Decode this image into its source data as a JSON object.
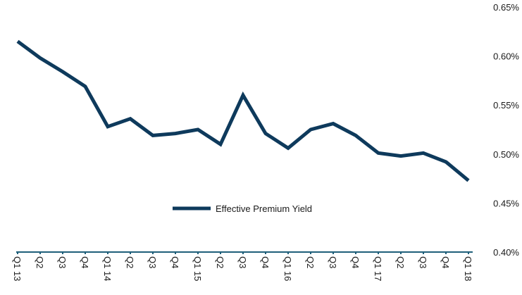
{
  "chart_data": {
    "type": "line",
    "categories": [
      "Q1 13",
      "Q2",
      "Q3",
      "Q4",
      "Q1 14",
      "Q2",
      "Q3",
      "Q4",
      "Q1 15",
      "Q2",
      "Q3",
      "Q4",
      "Q1 16",
      "Q2",
      "Q3",
      "Q4",
      "Q1 17",
      "Q2",
      "Q3",
      "Q4",
      "Q1 18"
    ],
    "series": [
      {
        "name": "Effective Premium Yield",
        "color": "#0e3a5c",
        "values": [
          0.615,
          0.598,
          0.584,
          0.569,
          0.528,
          0.536,
          0.519,
          0.521,
          0.525,
          0.51,
          0.56,
          0.521,
          0.506,
          0.525,
          0.531,
          0.519,
          0.501,
          0.498,
          0.501,
          0.492,
          0.473
        ]
      }
    ],
    "y_ticks": [
      "0.65%",
      "0.60%",
      "0.55%",
      "0.50%",
      "0.45%",
      "0.40%"
    ],
    "ylim": [
      0.4,
      0.65
    ],
    "legend_position": "center",
    "grid": false
  }
}
